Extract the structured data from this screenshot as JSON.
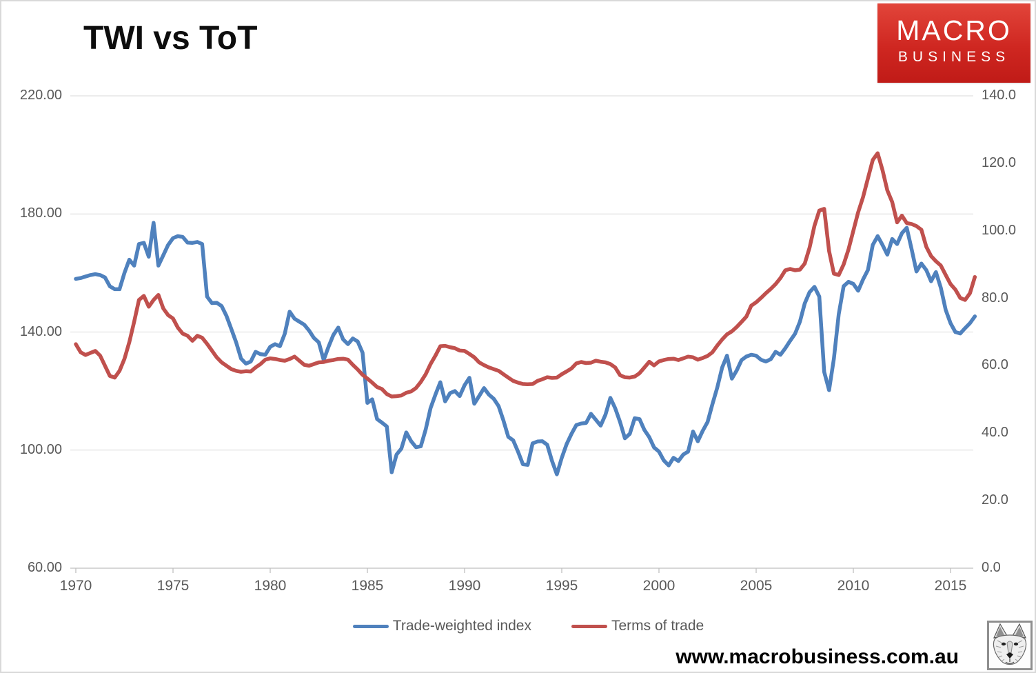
{
  "page": {
    "url_label": "www.macrobusiness.com.au"
  },
  "logo": {
    "line1": "MACRO",
    "line2": "BUSINESS",
    "bg_top": "#e2453a",
    "bg_bottom": "#c01b17"
  },
  "icons": {
    "wolf_logo": "wolf-sketch"
  },
  "chart_data": {
    "type": "line",
    "title": "TWI vs ToT",
    "grid": true,
    "legend_position": "bottom",
    "grid_color": "#D9D9D9",
    "axis_color": "#BFBFBF",
    "tick_label_color": "#595959",
    "x_start": 1970,
    "x_step": 0.25,
    "x_axis": {
      "tick_values": [
        1970,
        1975,
        1980,
        1985,
        1990,
        1995,
        2000,
        2005,
        2010,
        2015
      ],
      "tick_labels": [
        "1970",
        "1975",
        "1980",
        "1985",
        "1990",
        "1995",
        "2000",
        "2005",
        "2010",
        "2015"
      ]
    },
    "left_axis": {
      "min": 60,
      "max": 220,
      "tick_values": [
        220,
        180,
        140,
        100,
        60
      ],
      "tick_labels": [
        "220.00",
        "180.00",
        "140.00",
        "100.00",
        "60.00"
      ]
    },
    "right_axis": {
      "min": 0,
      "max": 140,
      "tick_values": [
        140,
        120,
        100,
        80,
        60,
        40,
        20,
        0
      ],
      "tick_labels": [
        "140.0",
        "120.0",
        "100.0",
        "80.0",
        "60.0",
        "40.0",
        "20.0",
        "0.0"
      ]
    },
    "series": [
      {
        "name": "Trade-weighted index",
        "axis": "left",
        "color": "#4F81BD",
        "values": [
          158,
          158.3,
          158.8,
          159.3,
          159.6,
          159.3,
          158.5,
          155.5,
          154.5,
          154.5,
          160,
          164.5,
          162.5,
          169.8,
          170.2,
          165.5,
          177,
          162.5,
          166,
          169.5,
          171.8,
          172.5,
          172.2,
          170.3,
          170.2,
          170.5,
          169.8,
          152,
          149.8,
          149.9,
          148.8,
          145.5,
          141,
          136.5,
          131,
          129.3,
          130,
          133.3,
          132.5,
          132.3,
          135,
          135.9,
          135.2,
          139.4,
          146.9,
          144.5,
          143.5,
          142.5,
          140.5,
          138,
          136.5,
          130.5,
          135,
          139,
          141.5,
          137.5,
          135.9,
          137.8,
          136.8,
          133,
          116,
          117.2,
          110.5,
          109.3,
          108,
          92.5,
          98.5,
          100.5,
          106,
          103,
          101,
          101.3,
          107,
          114.2,
          118.8,
          123,
          116.5,
          119.3,
          120,
          118.3,
          122,
          124.5,
          115.7,
          118.3,
          121,
          118.8,
          117.4,
          114.9,
          110,
          104.5,
          103.3,
          99.5,
          95.2,
          95,
          102.3,
          102.9,
          103,
          101.8,
          96.3,
          91.8,
          97.4,
          102,
          105.5,
          108.5,
          109,
          109.2,
          112.3,
          110.3,
          108.3,
          112,
          117.7,
          114.2,
          109.5,
          104,
          105.5,
          110.8,
          110.5,
          106.8,
          104.4,
          100.9,
          99.5,
          96.5,
          94.8,
          97.4,
          96.3,
          98.5,
          99.5,
          106.3,
          103,
          106.5,
          109.5,
          115.5,
          121.2,
          128,
          132,
          124.2,
          127,
          130.5,
          131.7,
          132.3,
          132,
          130.6,
          130,
          130.8,
          133.3,
          132.3,
          134.5,
          137,
          139.4,
          143.5,
          149.7,
          153.5,
          155.3,
          152,
          126.5,
          120.3,
          131,
          146,
          155.5,
          157,
          156.3,
          154,
          157.8,
          161,
          169.5,
          172.5,
          169.5,
          166.2,
          171.5,
          169.8,
          173.5,
          175.3,
          168,
          160.5,
          163.2,
          161,
          157.2,
          160.3,
          155,
          147.5,
          143,
          140,
          139.5,
          141.3,
          143,
          145.3
        ]
      },
      {
        "name": "Terms of trade",
        "axis": "right",
        "color": "#C0504D",
        "values": [
          66.4,
          64,
          63.2,
          63.8,
          64.4,
          63,
          60,
          57,
          56.5,
          58.5,
          62,
          67,
          73,
          79.5,
          80.7,
          77.5,
          79.5,
          81,
          77,
          75,
          74,
          71.3,
          69.5,
          68.9,
          67.4,
          68.9,
          68.3,
          66.5,
          64.5,
          62.5,
          61,
          60,
          59,
          58.5,
          58.2,
          58.4,
          58.3,
          59.5,
          60.5,
          61.8,
          62.2,
          62,
          61.7,
          61.5,
          62,
          62.7,
          61.5,
          60.3,
          60,
          60.5,
          61,
          61.1,
          61.5,
          61.7,
          62,
          62.1,
          61.8,
          60.3,
          58.9,
          57.3,
          56.2,
          55,
          53.7,
          53.1,
          51.6,
          50.9,
          51,
          51.2,
          52,
          52.4,
          53.4,
          55.2,
          57.5,
          60.5,
          63,
          65.8,
          65.9,
          65.5,
          65.2,
          64.5,
          64.4,
          63.5,
          62.5,
          61,
          60.2,
          59.5,
          59,
          58.5,
          57.5,
          56.5,
          55.5,
          55,
          54.6,
          54.5,
          54.6,
          55.5,
          56,
          56.6,
          56.4,
          56.5,
          57.5,
          58.3,
          59.2,
          60.7,
          61.1,
          60.8,
          60.9,
          61.5,
          61.2,
          61,
          60.5,
          59.5,
          57.2,
          56.6,
          56.5,
          56.8,
          57.8,
          59.5,
          61.2,
          60.1,
          61.3,
          61.7,
          62,
          62.1,
          61.7,
          62.2,
          62.7,
          62.5,
          61.8,
          62.3,
          62.9,
          64,
          66,
          67.8,
          69.3,
          70.2,
          71.5,
          73,
          74.6,
          77.8,
          78.8,
          80.1,
          81.5,
          82.8,
          84.2,
          86,
          88.3,
          88.7,
          88.3,
          88.5,
          90.3,
          95,
          101.5,
          106,
          106.5,
          94,
          87.3,
          86.9,
          90,
          94.5,
          100,
          105.5,
          110,
          115.5,
          121,
          123,
          118,
          112,
          108.5,
          102.5,
          104.5,
          102.3,
          102,
          101.4,
          100.3,
          95.3,
          92.5,
          91,
          89.7,
          86.9,
          84.2,
          82.6,
          80.1,
          79.5,
          81.5,
          86.3
        ]
      }
    ]
  }
}
